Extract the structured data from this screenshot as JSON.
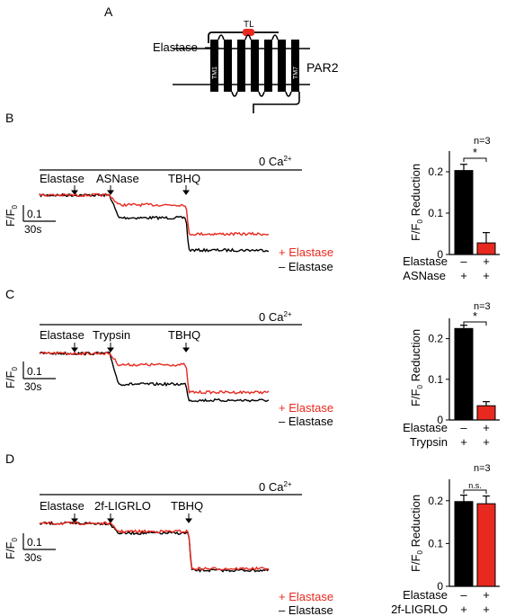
{
  "figure": {
    "panelA": {
      "letter": "A",
      "protease_label": "Elastase",
      "tag_label": "TL",
      "receptor_label": "PAR2",
      "tm_first": "TM1",
      "tm_last": "TM7"
    },
    "panels": [
      {
        "letter": "B",
        "condition_text": "0 Ca",
        "condition_sup": "2+",
        "events": [
          "Elastase",
          "ASNase",
          "TBHQ"
        ],
        "scale_y": "0.1",
        "scale_x": "30s",
        "y_axis_main": "F/F",
        "y_axis_sub": "0",
        "legend_plus": "+ Elastase",
        "legend_minus": "– Elastase",
        "bar_n": "n=3",
        "bar_sig": "*",
        "bar_ylabel_pre": "F/F",
        "bar_ylabel_sub": "0",
        "bar_ylabel_post": " Reduction",
        "row1_label": "Elastase",
        "row1_signs": [
          "–",
          "+"
        ],
        "row2_label": "ASNase",
        "row2_signs": [
          "+",
          "+"
        ],
        "ticks": [
          "0",
          "0.1",
          "0.2"
        ]
      },
      {
        "letter": "C",
        "condition_text": "0 Ca",
        "condition_sup": "2+",
        "events": [
          "Elastase",
          "Trypsin",
          "TBHQ"
        ],
        "scale_y": "0.1",
        "scale_x": "30s",
        "y_axis_main": "F/F",
        "y_axis_sub": "0",
        "legend_plus": "+ Elastase",
        "legend_minus": "– Elastase",
        "bar_n": "n=3",
        "bar_sig": "*",
        "bar_ylabel_pre": "F/F",
        "bar_ylabel_sub": "0",
        "bar_ylabel_post": " Reduction",
        "row1_label": "Elastase",
        "row1_signs": [
          "–",
          "+"
        ],
        "row2_label": "Trypsin",
        "row2_signs": [
          "+",
          "+"
        ],
        "ticks": [
          "0",
          "0.1",
          "0.2"
        ]
      },
      {
        "letter": "D",
        "condition_text": "0 Ca",
        "condition_sup": "2+",
        "events": [
          "Elastase",
          "2f-LIGRLO",
          "TBHQ"
        ],
        "scale_y": "0.1",
        "scale_x": "30s",
        "y_axis_main": "F/F",
        "y_axis_sub": "0",
        "legend_plus": "+ Elastase",
        "legend_minus": "– Elastase",
        "bar_n": "n=3",
        "bar_sig": "n.s.",
        "bar_ylabel_pre": "F/F",
        "bar_ylabel_sub": "0",
        "bar_ylabel_post": " Reduction",
        "row1_label": "Elastase",
        "row1_signs": [
          "–",
          "+"
        ],
        "row2_label": "2f-LIGRLO",
        "row2_signs": [
          "+",
          "+"
        ],
        "ticks": [
          "0",
          "0.1",
          "0.2"
        ]
      }
    ]
  },
  "colors": {
    "red": "#e8291f",
    "black": "#000000"
  },
  "chart_data": [
    {
      "type": "line",
      "panel": "B",
      "series": [
        {
          "name": "+ Elastase",
          "color": "#e8291f",
          "levels": [
            0.3,
            0.24,
            0.06
          ]
        },
        {
          "name": "– Elastase",
          "color": "#000000",
          "levels": [
            0.3,
            0.16,
            -0.04
          ]
        }
      ]
    },
    {
      "type": "bar",
      "panel": "B",
      "categories": [
        "– Elastase",
        "+ Elastase"
      ],
      "values": [
        0.203,
        0.028
      ],
      "errors": [
        0.015,
        0.025
      ],
      "colors": [
        "#000000",
        "#e8291f"
      ],
      "ylim": [
        0,
        0.25
      ]
    },
    {
      "type": "line",
      "panel": "C",
      "series": [
        {
          "name": "+ Elastase",
          "color": "#e8291f",
          "levels": [
            0.3,
            0.23,
            0.06
          ]
        },
        {
          "name": "– Elastase",
          "color": "#000000",
          "levels": [
            0.3,
            0.11,
            0.01
          ]
        }
      ]
    },
    {
      "type": "bar",
      "panel": "C",
      "categories": [
        "– Elastase",
        "+ Elastase"
      ],
      "values": [
        0.225,
        0.035
      ],
      "errors": [
        0.008,
        0.01
      ],
      "colors": [
        "#000000",
        "#e8291f"
      ],
      "ylim": [
        0,
        0.25
      ]
    },
    {
      "type": "line",
      "panel": "D",
      "series": [
        {
          "name": "+ Elastase",
          "color": "#e8291f",
          "levels": [
            0.3,
            0.25,
            0.02
          ]
        },
        {
          "name": "– Elastase",
          "color": "#000000",
          "levels": [
            0.3,
            0.24,
            0.01
          ]
        }
      ]
    },
    {
      "type": "bar",
      "panel": "D",
      "categories": [
        "– Elastase",
        "+ Elastase"
      ],
      "values": [
        0.198,
        0.193
      ],
      "errors": [
        0.015,
        0.018
      ],
      "colors": [
        "#000000",
        "#e8291f"
      ],
      "ylim": [
        0,
        0.25
      ]
    }
  ]
}
